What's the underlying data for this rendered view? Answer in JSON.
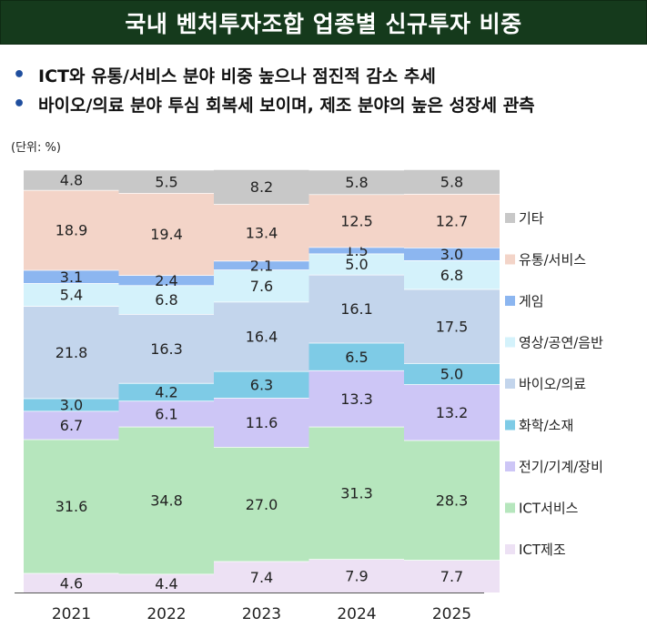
{
  "header": {
    "title": "국내 벤처투자조합 업종별 신규투자 비중"
  },
  "bullets": [
    "ICT와 유통/서비스 분야 비중 높으나 점진적 감소 추세",
    "바이오/의료 분야 투심 회복세 보이며, 제조 분야의 높은 성장세 관측"
  ],
  "unit_label": "(단위: %)",
  "colors": {
    "title_bg": "#153a1c",
    "bullet": "#1f4e9e"
  },
  "chart_data": {
    "type": "bar",
    "stacked": true,
    "orientation": "vertical",
    "categories": [
      "2021",
      "2022",
      "2023",
      "2024",
      "2025"
    ],
    "ylim": [
      0,
      100
    ],
    "series": [
      {
        "name": "ICT제조",
        "color": "#ede1f4",
        "values": [
          4.6,
          4.4,
          7.4,
          7.9,
          7.7
        ]
      },
      {
        "name": "ICT서비스",
        "color": "#b6e6bd",
        "values": [
          31.6,
          34.8,
          27.0,
          31.3,
          28.3
        ]
      },
      {
        "name": "전기/기계/장비",
        "color": "#cdc6f6",
        "values": [
          6.7,
          6.1,
          11.6,
          13.3,
          13.2
        ]
      },
      {
        "name": "화학/소재",
        "color": "#7ecbe6",
        "values": [
          3.0,
          4.2,
          6.3,
          6.5,
          5.0
        ]
      },
      {
        "name": "바이오/의료",
        "color": "#c3d5ec",
        "values": [
          21.8,
          16.3,
          16.4,
          16.1,
          17.5
        ]
      },
      {
        "name": "영상/공연/음반",
        "color": "#d4f2fb",
        "values": [
          5.4,
          6.8,
          7.6,
          5.0,
          6.8
        ]
      },
      {
        "name": "게임",
        "color": "#8cb6f0",
        "values": [
          3.1,
          2.4,
          2.1,
          1.5,
          3.0
        ]
      },
      {
        "name": "유통/서비스",
        "color": "#f3d4c8",
        "values": [
          18.9,
          19.4,
          13.4,
          12.5,
          12.7
        ]
      },
      {
        "name": "기타",
        "color": "#c8c8c8",
        "values": [
          4.8,
          5.5,
          8.2,
          5.8,
          5.8
        ]
      }
    ]
  }
}
